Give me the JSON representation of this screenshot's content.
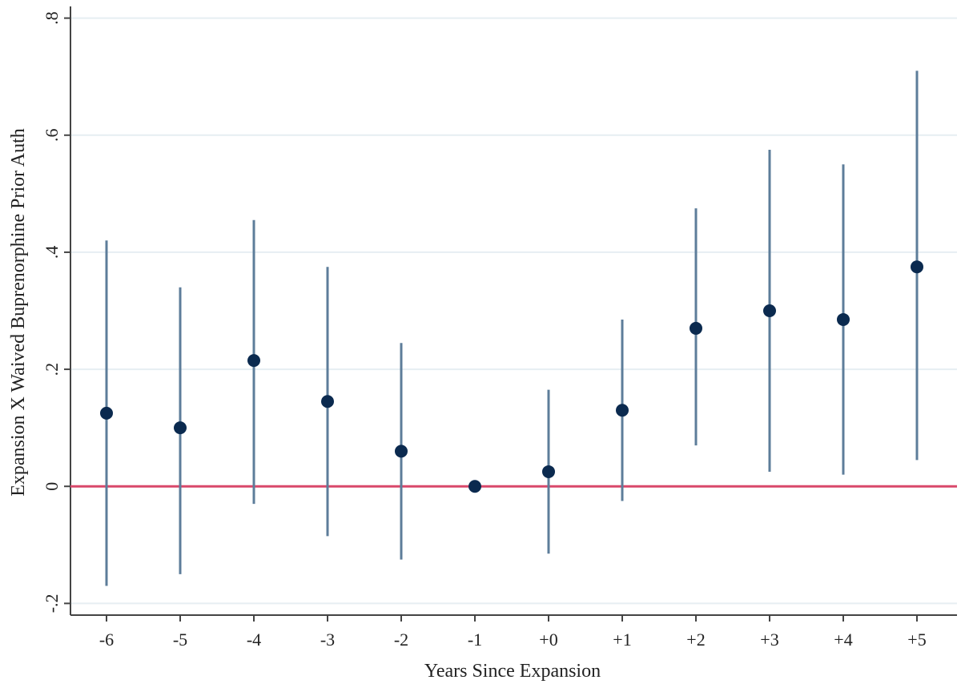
{
  "chart_data": {
    "type": "scatter",
    "title": "",
    "xlabel": "Years Since Expansion",
    "ylabel": "Expansion X Waived Buprenorphine Prior Auth",
    "categories": [
      "-6",
      "-5",
      "-4",
      "-3",
      "-2",
      "-1",
      "+0",
      "+1",
      "+2",
      "+3",
      "+4",
      "+5"
    ],
    "series": [
      {
        "estimate": [
          0.125,
          0.1,
          0.215,
          0.145,
          0.06,
          0.0,
          0.025,
          0.13,
          0.27,
          0.3,
          0.285,
          0.375
        ],
        "ci_lower": [
          -0.17,
          -0.15,
          -0.03,
          -0.085,
          -0.125,
          0.0,
          -0.115,
          -0.025,
          0.07,
          0.025,
          0.02,
          0.045
        ],
        "ci_upper": [
          0.42,
          0.34,
          0.455,
          0.375,
          0.245,
          0.0,
          0.165,
          0.285,
          0.475,
          0.575,
          0.55,
          0.71
        ]
      }
    ],
    "y_ticks": [
      "-.2",
      "0",
      ".2",
      ".4",
      ".6",
      ".8"
    ],
    "y_tick_values": [
      -0.2,
      0,
      0.2,
      0.4,
      0.6,
      0.8
    ],
    "ylim": [
      -0.22,
      0.82
    ],
    "reference_line": 0,
    "grid": true,
    "colors": {
      "marker": "#0b2a4f",
      "ci": "#5d7d9a",
      "reference": "#d9486b",
      "grid": "#e6eef2",
      "axis": "#444444"
    }
  }
}
